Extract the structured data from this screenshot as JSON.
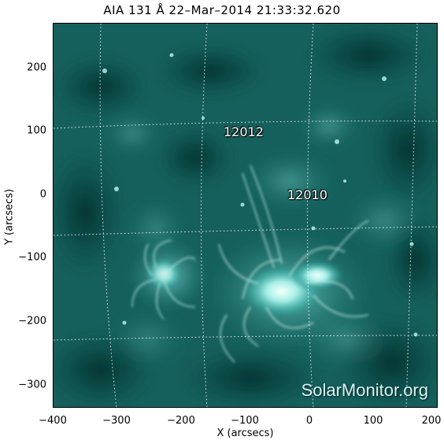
{
  "title": "AIA 131 Å 22–Mar–2014 21:33:32.620",
  "axes": {
    "xlabel": "X (arcsecs)",
    "ylabel": "Y (arcsecs)",
    "x_ticks": [
      "−400",
      "−300",
      "−200",
      "−100",
      "0",
      "100",
      "200"
    ],
    "y_ticks": [
      "200",
      "100",
      "0",
      "−100",
      "−200",
      "−300"
    ],
    "x_range": [
      -400,
      200
    ],
    "y_range": [
      -340,
      270
    ]
  },
  "active_regions": [
    {
      "label": "12012",
      "x": -100,
      "y": 95
    },
    {
      "label": "12010",
      "x": 0,
      "y": -5
    }
  ],
  "watermark": "SolarMonitor.org",
  "colors": {
    "image_dark": "#0c3c3a",
    "image_mid": "#1d7a76",
    "image_bright": "#dffffa",
    "grid": "#ffffff"
  }
}
